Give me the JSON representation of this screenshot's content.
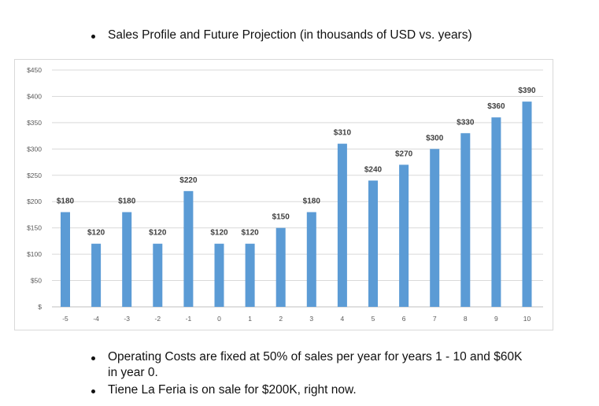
{
  "header": {
    "bullet": "Sales Profile and Future Projection (in thousands of USD vs. years)"
  },
  "chart_data": {
    "type": "bar",
    "title": "",
    "xlabel": "",
    "ylabel": "",
    "categories": [
      "-5",
      "-4",
      "-3",
      "-2",
      "-1",
      "0",
      "1",
      "2",
      "3",
      "4",
      "5",
      "6",
      "7",
      "8",
      "9",
      "10"
    ],
    "values": [
      180,
      120,
      180,
      120,
      220,
      120,
      120,
      150,
      180,
      310,
      240,
      270,
      300,
      330,
      360,
      390
    ],
    "data_labels": [
      "$180",
      "$120",
      "$180",
      "$120",
      "$220",
      "$120",
      "$120",
      "$150",
      "$180",
      "$310",
      "$240",
      "$270",
      "$300",
      "$330",
      "$360",
      "$390"
    ],
    "ylim": [
      0,
      450
    ],
    "yticks": [
      0,
      50,
      100,
      150,
      200,
      250,
      300,
      350,
      400,
      450
    ],
    "ytick_labels": [
      "$",
      "$50",
      "$100",
      "$150",
      "$200",
      "$250",
      "$300",
      "$350",
      "$400",
      "$450"
    ],
    "grid": true,
    "bar_color": "#5b9bd5"
  },
  "notes": [
    {
      "line1": "Operating Costs are fixed at 50% of sales per year for years 1 - 10 and $60K",
      "line2": "in year 0."
    },
    {
      "line1": "Tiene La Feria is on sale for $200K, right now."
    }
  ]
}
